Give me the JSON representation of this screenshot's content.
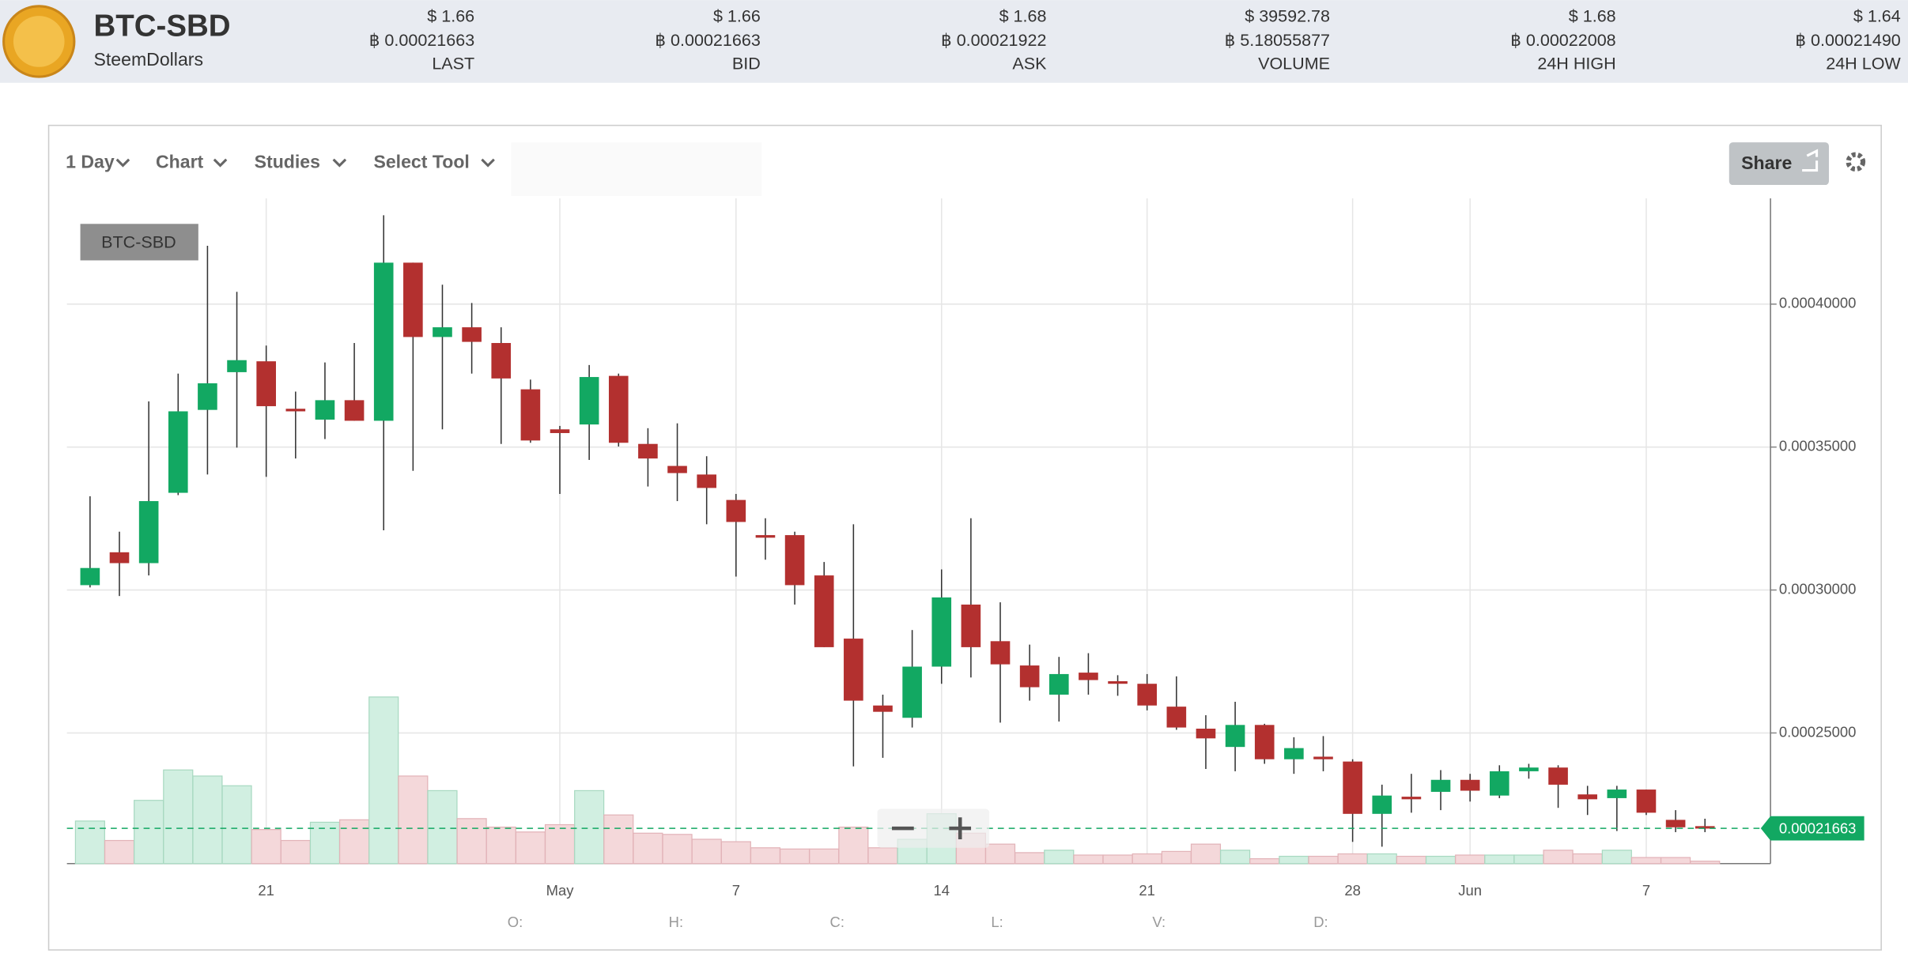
{
  "header": {
    "title": "BTC-SBD",
    "subtitle": "SteemDollars",
    "stats": [
      {
        "usd": "$ 1.66",
        "btc": "฿ 0.00021663",
        "label": "LAST"
      },
      {
        "usd": "$ 1.66",
        "btc": "฿ 0.00021663",
        "label": "BID"
      },
      {
        "usd": "$ 1.68",
        "btc": "฿ 0.00021922",
        "label": "ASK"
      },
      {
        "usd": "$ 39592.78",
        "btc": "฿ 5.18055877",
        "label": "VOLUME"
      },
      {
        "usd": "$ 1.68",
        "btc": "฿ 0.00022008",
        "label": "24H HIGH"
      },
      {
        "usd": "$ 1.64",
        "btc": "฿ 0.00021490",
        "label": "24H LOW"
      }
    ]
  },
  "toolbar": {
    "period": "1 Day",
    "chart": "Chart",
    "studies": "Studies",
    "tool": "Select Tool",
    "share": "Share"
  },
  "readout": [
    "O:",
    "H:",
    "C:",
    "L:",
    "V:",
    "D:"
  ],
  "chart_data": {
    "type": "candlestick",
    "legend": "BTC-SBD",
    "categories": [
      null,
      null,
      null,
      null,
      null,
      null,
      "21",
      null,
      null,
      null,
      null,
      null,
      null,
      null,
      null,
      null,
      "May",
      null,
      null,
      null,
      null,
      null,
      "7",
      null,
      null,
      null,
      null,
      null,
      null,
      "14",
      null,
      null,
      null,
      null,
      null,
      null,
      "21",
      null,
      null,
      null,
      null,
      null,
      null,
      "28",
      null,
      null,
      null,
      "Jun",
      null,
      null,
      null,
      null,
      null,
      "7",
      null,
      null
    ],
    "open": [
      0.0003017,
      0.0003132,
      0.0003094,
      0.000334,
      0.000363,
      0.0003762,
      0.00038,
      0.0003634,
      0.0003596,
      0.0003664,
      0.0003592,
      0.0004145,
      0.0003885,
      0.0003919,
      0.0003864,
      0.0003702,
      0.0003562,
      0.0003579,
      0.0003749,
      0.0003511,
      0.0003434,
      0.0003404,
      0.0003315,
      0.0003192,
      0.0003192,
      0.0003051,
      0.000283,
      0.0002596,
      0.0002553,
      0.0002732,
      0.0002949,
      0.0002821,
      0.0002736,
      0.0002634,
      0.0002711,
      0.0002681,
      0.0002672,
      0.0002592,
      0.0002515,
      0.0002451,
      0.0002528,
      0.0002408,
      0.0002417,
      0.00024,
      0.0002217,
      0.0002277,
      0.0002294,
      0.0002336,
      0.0002281,
      0.0002366,
      0.0002379,
      0.0002285,
      0.0002272,
      0.0002302,
      0.0002196,
      0.0002174
    ],
    "high": [
      0.0003328,
      0.0003204,
      0.000366,
      0.0003757,
      0.0004204,
      0.0004043,
      0.0003855,
      0.0003694,
      0.0003796,
      0.0003864,
      0.0004311,
      0.0004145,
      0.0004068,
      0.0004004,
      0.0003919,
      0.0003736,
      0.0003574,
      0.0003787,
      0.0003757,
      0.0003566,
      0.0003583,
      0.0003468,
      0.0003336,
      0.0003251,
      0.0003204,
      0.0003098,
      0.000323,
      0.0002634,
      0.000286,
      0.0003072,
      0.0003251,
      0.0002957,
      0.0002809,
      0.0002766,
      0.0002779,
      0.0002702,
      0.0002706,
      0.0002698,
      0.0002562,
      0.0002609,
      0.0002532,
      0.0002485,
      0.0002489,
      0.0002408,
      0.0002319,
      0.0002357,
      0.000237,
      0.0002357,
      0.0002387,
      0.0002392,
      0.0002387,
      0.0002315,
      0.0002315,
      0.0002302,
      0.000223,
      0.00022
    ],
    "low": [
      0.0003009,
      0.0002979,
      0.0003051,
      0.0003332,
      0.0003404,
      0.0003498,
      0.0003396,
      0.000346,
      0.0003528,
      0.0003592,
      0.0003209,
      0.0003417,
      0.0003562,
      0.0003757,
      0.0003511,
      0.0003515,
      0.0003336,
      0.0003455,
      0.0003502,
      0.0003362,
      0.0003311,
      0.000323,
      0.0003047,
      0.0003106,
      0.0002949,
      0.00028,
      0.0002383,
      0.0002413,
      0.0002519,
      0.0002672,
      0.0002694,
      0.0002536,
      0.0002613,
      0.000254,
      0.0002634,
      0.000263,
      0.0002579,
      0.0002511,
      0.0002374,
      0.0002366,
      0.0002392,
      0.0002357,
      0.0002366,
      0.0002119,
      0.0002102,
      0.0002221,
      0.000223,
      0.000226,
      0.0002272,
      0.000234,
      0.0002238,
      0.0002213,
      0.0002157,
      0.0002213,
      0.0002153,
      0.0002153
    ],
    "close": [
      0.0003077,
      0.0003094,
      0.0003311,
      0.0003625,
      0.0003723,
      0.0003804,
      0.0003643,
      0.0003625,
      0.0003664,
      0.0003592,
      0.0004145,
      0.0003885,
      0.0003919,
      0.0003868,
      0.000374,
      0.0003523,
      0.0003549,
      0.0003745,
      0.0003515,
      0.000346,
      0.0003409,
      0.0003357,
      0.0003238,
      0.0003183,
      0.0003017,
      0.00028,
      0.0002613,
      0.0002574,
      0.0002732,
      0.0002974,
      0.00028,
      0.000274,
      0.000266,
      0.0002706,
      0.0002685,
      0.0002672,
      0.0002596,
      0.0002519,
      0.0002481,
      0.0002528,
      0.0002408,
      0.0002447,
      0.0002408,
      0.0002217,
      0.0002281,
      0.0002268,
      0.0002336,
      0.0002298,
      0.0002366,
      0.0002379,
      0.0002319,
      0.0002268,
      0.0002302,
      0.0002221,
      0.000217,
      0.0002166
    ],
    "volume": [
      35,
      19,
      52,
      77,
      72,
      64,
      28,
      19,
      34,
      36,
      137,
      72,
      60,
      37,
      30,
      26,
      32,
      60,
      40,
      25,
      24,
      20,
      18,
      13,
      12,
      12,
      30,
      13,
      20,
      41,
      25,
      16,
      9,
      11,
      7,
      7,
      8,
      10,
      16,
      11,
      4,
      6,
      6,
      8,
      8,
      6,
      6,
      7,
      7,
      7,
      11,
      8,
      11,
      5,
      5,
      2
    ],
    "up_color": "#12a862",
    "down_color": "#b3302f",
    "ylim": [
      0.0002043,
      0.000437
    ],
    "yticks": [
      {
        "value": 0.00025,
        "label": "0.00025000"
      },
      {
        "value": 0.0003,
        "label": "0.00030000"
      },
      {
        "value": 0.00035,
        "label": "0.00035000"
      },
      {
        "value": 0.0004,
        "label": "0.00040000"
      }
    ],
    "price_line": 0.00021663,
    "grid": true
  }
}
